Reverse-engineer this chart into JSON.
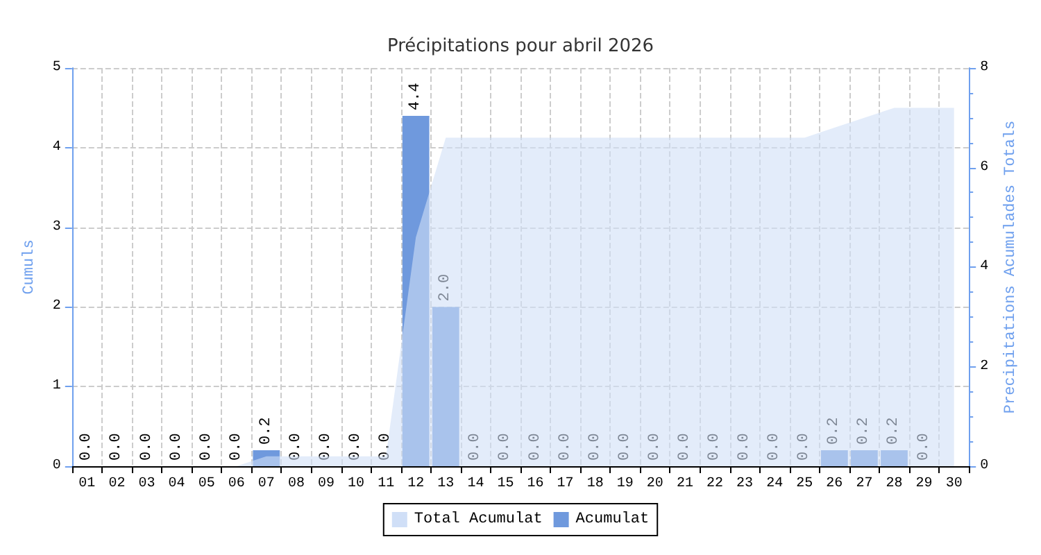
{
  "chart_data": {
    "type": "bar",
    "title": "Précipitations pour abril 2026",
    "ylabel": "Cumuls",
    "y2label": "Precipitations Acumulades Totals",
    "categories": [
      "01",
      "02",
      "03",
      "04",
      "05",
      "06",
      "07",
      "08",
      "09",
      "10",
      "11",
      "12",
      "13",
      "14",
      "15",
      "16",
      "17",
      "18",
      "19",
      "20",
      "21",
      "22",
      "23",
      "24",
      "25",
      "26",
      "27",
      "28",
      "29",
      "30"
    ],
    "series": [
      {
        "name": "Total Acumulat",
        "type": "area",
        "axis": "y2",
        "color": "#d0dff7",
        "values": [
          0,
          0,
          0,
          0,
          0,
          0,
          0.2,
          0.2,
          0.2,
          0.2,
          0.2,
          4.6,
          6.6,
          6.6,
          6.6,
          6.6,
          6.6,
          6.6,
          6.6,
          6.6,
          6.6,
          6.6,
          6.6,
          6.6,
          6.6,
          6.8,
          7.0,
          7.2,
          7.2,
          7.2
        ]
      },
      {
        "name": "Acumulat",
        "color": "#6f99dd",
        "values": [
          0,
          0,
          0,
          0,
          0,
          0,
          0.2,
          0,
          0,
          0,
          0,
          4.4,
          2.0,
          0,
          0,
          0,
          0,
          0,
          0,
          0,
          0,
          0,
          0,
          0,
          0,
          0.2,
          0.2,
          0.2,
          0,
          null
        ],
        "value_labels": [
          "0.0",
          "0.0",
          "0.0",
          "0.0",
          "0.0",
          "0.0",
          "0.2",
          "0.0",
          "0.0",
          "0.0",
          "0.0",
          "4.4",
          "2.0",
          "0.0",
          "0.0",
          "0.0",
          "0.0",
          "0.0",
          "0.0",
          "0.0",
          "0.0",
          "0.0",
          "0.0",
          "0.0",
          "0.0",
          "0.2",
          "0.2",
          "0.2",
          "0.0",
          null
        ]
      }
    ],
    "ylim": [
      0,
      5
    ],
    "yticks": [
      0,
      1,
      2,
      3,
      4,
      5
    ],
    "y2lim": [
      0,
      8
    ],
    "y2ticks": [
      0,
      2,
      4,
      6,
      8
    ],
    "grid": true,
    "legend": "bottom"
  }
}
